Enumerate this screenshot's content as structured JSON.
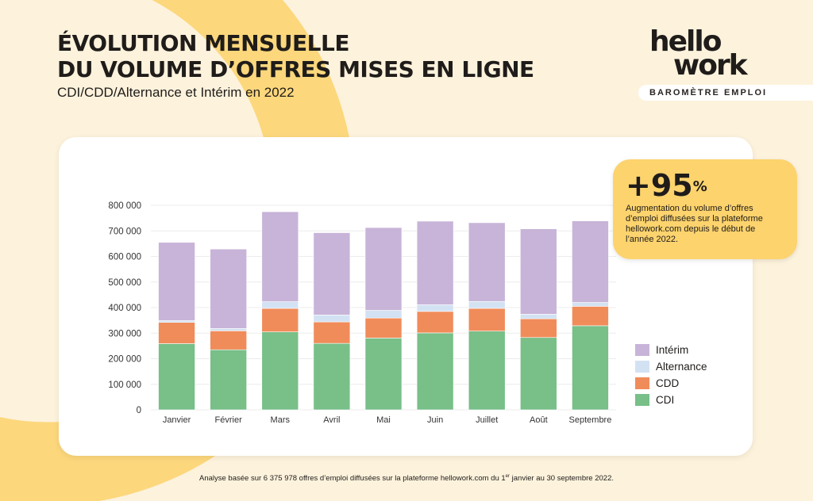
{
  "header": {
    "title_line1": "ÉVOLUTION MENSUELLE",
    "title_line2": "DU VOLUME D’OFFRES MISES EN LIGNE",
    "subtitle": "CDI/CDD/Alternance et Intérim en 2022"
  },
  "logo": {
    "line1": "hello",
    "line2": "work",
    "tagline": "BAROMÈTRE EMPLOI"
  },
  "callout": {
    "value": "+95",
    "unit": "%",
    "text": "Augmentation du volume d’offres d’emploi diffusées sur la plateforme hellowork.com depuis le début de l’année 2022."
  },
  "footnote": {
    "before": "Analyse basée sur 6 375 978 offres d’emploi diffusées sur la plateforme hellowork.com du 1",
    "sup": "er",
    "after": " janvier au 30 septembre 2022."
  },
  "colors": {
    "background": "#fdf2dc",
    "accent_yellow": "#fcd36d",
    "Intérim": "#c8b4d8",
    "Alternance": "#d3e2f3",
    "CDD": "#f08c5a",
    "CDI": "#78bf88"
  },
  "chart_data": {
    "type": "bar",
    "stacked": true,
    "categories": [
      "Janvier",
      "Février",
      "Mars",
      "Avril",
      "Mai",
      "Juin",
      "Juillet",
      "Août",
      "Septembre"
    ],
    "series": [
      {
        "name": "CDI",
        "values": [
          259000,
          235000,
          305000,
          260000,
          281000,
          301000,
          308000,
          283000,
          329000
        ]
      },
      {
        "name": "CDD",
        "values": [
          83000,
          74000,
          92000,
          84000,
          78000,
          84000,
          89000,
          73000,
          76000
        ]
      },
      {
        "name": "Alternance",
        "values": [
          7000,
          9000,
          26000,
          27000,
          30000,
          26000,
          27000,
          18000,
          15000
        ]
      },
      {
        "name": "Intérim",
        "values": [
          306000,
          311000,
          352000,
          322000,
          324000,
          327000,
          308000,
          334000,
          319000
        ]
      }
    ],
    "yticks": [
      "0",
      "100 000",
      "200 000",
      "300 000",
      "400 000",
      "500 000",
      "600 000",
      "700 000",
      "800 000"
    ],
    "ylim": [
      0,
      800000
    ],
    "grid": true,
    "legend_order": [
      "Intérim",
      "Alternance",
      "CDD",
      "CDI"
    ],
    "legend_position": "right"
  }
}
